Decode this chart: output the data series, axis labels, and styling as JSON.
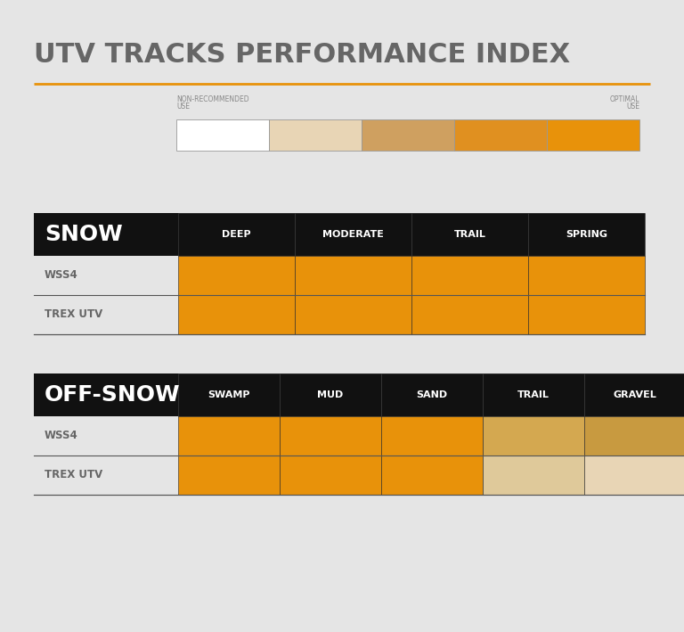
{
  "title": "UTV TRACKS PERFORMANCE INDEX",
  "title_color": "#666666",
  "title_fontsize": 22,
  "bg_color": "#e5e5e5",
  "orange_line_color": "#E8920A",
  "legend_colors": [
    "#ffffff",
    "#e8d5b5",
    "#cfa060",
    "#e09020",
    "#E8920A"
  ],
  "legend_left_label_1": "NON-RECOMMENDED",
  "legend_left_label_2": "USE",
  "legend_right_label_1": "OPTIMAL",
  "legend_right_label_2": "USE",
  "snow_header": "SNOW",
  "snow_cols": [
    "DEEP",
    "MODERATE",
    "TRAIL",
    "SPRING"
  ],
  "offsnow_header": "OFF-SNOW",
  "offsnow_cols": [
    "SWAMP",
    "MUD",
    "SAND",
    "TRAIL",
    "GRAVEL"
  ],
  "rows": [
    "WSS4",
    "TREX UTV"
  ],
  "snow_data": [
    [
      "#E8920A",
      "#E8920A",
      "#E8920A",
      "#E8920A"
    ],
    [
      "#E8920A",
      "#E8920A",
      "#E8920A",
      "#E8920A"
    ]
  ],
  "offsnow_data": [
    [
      "#E8920A",
      "#E8920A",
      "#E8920A",
      "#d4a850",
      "#c89a40"
    ],
    [
      "#E8920A",
      "#E8920A",
      "#E8920A",
      "#dfc99a",
      "#e8d5b5"
    ]
  ],
  "header_bg": "#111111",
  "header_fg": "#ffffff",
  "row_label_color": "#666666",
  "row_bg": "#e5e5e5",
  "border_color": "#222222",
  "divider_color": "#555555"
}
